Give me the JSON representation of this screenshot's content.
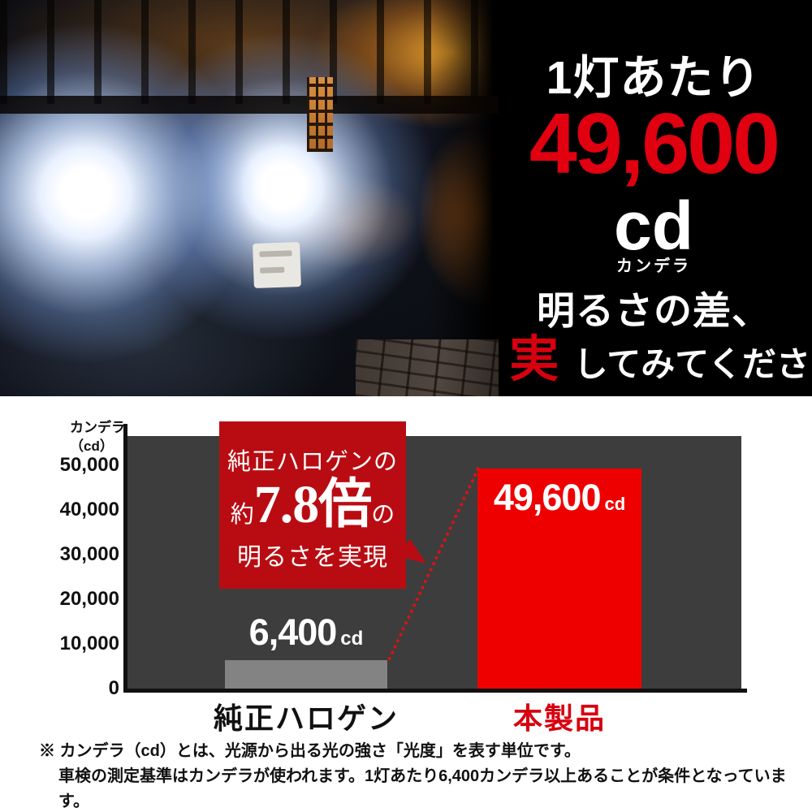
{
  "hero": {
    "headline_line1": "1灯あたり",
    "value": "49,600",
    "unit": "cd",
    "unit_reading": "カンデラ",
    "subline1": "明るさの差、",
    "subline2_accent": "実感",
    "subline2_rest": "してみてください。"
  },
  "chart_data": {
    "type": "bar",
    "title": "",
    "ylabel_line1": "カンデラ",
    "ylabel_line2": "（cd）",
    "categories": [
      "純正ハロゲン",
      "本製品"
    ],
    "values": [
      6400,
      49600
    ],
    "bar_value_labels": [
      "6,400",
      "49,600"
    ],
    "value_unit": "cd",
    "y_ticks": [
      "50,000",
      "40,000",
      "30,000",
      "20,000",
      "10,000",
      "0"
    ],
    "ylim": [
      0,
      56900
    ],
    "grid": false,
    "legend": "none",
    "plot_bg": "#3d3d3d",
    "bar_colors": [
      "#838383",
      "#ee0000"
    ],
    "category_label_colors": [
      "#111111",
      "#d7000f"
    ],
    "callout": {
      "line1": "純正ハロゲンの",
      "ratio_prefix": "約",
      "ratio_value": "7.8倍",
      "ratio_suffix": "の",
      "line3": "明るさを実現",
      "bg": "#b90c12"
    },
    "annotation": {
      "style": "dotted-line",
      "color": "#e01010"
    }
  },
  "footnote": {
    "line1": "※ カンデラ（cd）とは、光源から出る光の強さ「光度」を表す単位です。",
    "line2": "車検の測定基準はカンデラが使われます。1灯あたり6,400カンデラ以上あることが条件となっています。"
  },
  "colors": {
    "hero_bg": "#000000",
    "hero_value_red": "#e00010",
    "accent_red": "#d7000f",
    "bar_red": "#ee0000",
    "bar_gray": "#838383",
    "callout_red": "#b90c12",
    "plot_bg": "#3d3d3d"
  }
}
